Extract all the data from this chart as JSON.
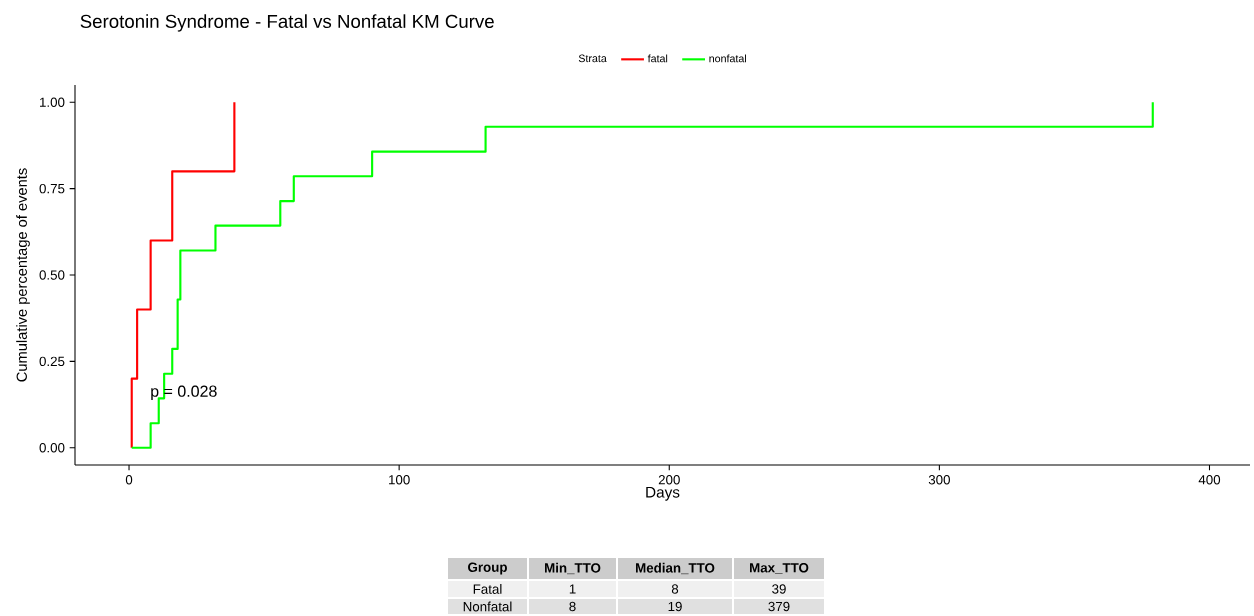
{
  "chart_data": {
    "type": "step",
    "title": "Serotonin Syndrome - Fatal vs Nonfatal KM Curve",
    "xlabel": "Days",
    "ylabel": "Cumulative percentage of events",
    "legend_title": "Strata",
    "series": [
      {
        "name": "fatal",
        "color": "#ff0000",
        "x": [
          1,
          1,
          3,
          8,
          16,
          39
        ],
        "values": [
          0,
          0.2,
          0.4,
          0.6,
          0.8,
          1.0
        ]
      },
      {
        "name": "nonfatal",
        "color": "#00ff00",
        "x": [
          1,
          8,
          11,
          13,
          16,
          18,
          19,
          32,
          56,
          61,
          90,
          132,
          379
        ],
        "values": [
          0,
          0.071,
          0.143,
          0.214,
          0.286,
          0.429,
          0.571,
          0.643,
          0.714,
          0.786,
          0.857,
          0.929,
          1.0
        ]
      }
    ],
    "xlim": [
      -20,
      415
    ],
    "ylim": [
      -0.05,
      1.05
    ],
    "xticks": [
      0,
      100,
      200,
      300,
      400
    ],
    "yticks": [
      {
        "value": 0,
        "label": "0.00"
      },
      {
        "value": 0.25,
        "label": "0.25"
      },
      {
        "value": 0.5,
        "label": "0.50"
      },
      {
        "value": 0.75,
        "label": "0.75"
      },
      {
        "value": 1,
        "label": "1.00"
      }
    ],
    "grid": false,
    "legend": "top",
    "line_style": "solid",
    "marker": "none",
    "annotations": [
      "p = 0.028",
      "Group",
      "Min_TTO",
      "Median_TTO",
      "Max_TTO",
      "Fatal",
      "1",
      "8",
      "39",
      "Nonfatal",
      "8",
      "19",
      "379"
    ]
  }
}
